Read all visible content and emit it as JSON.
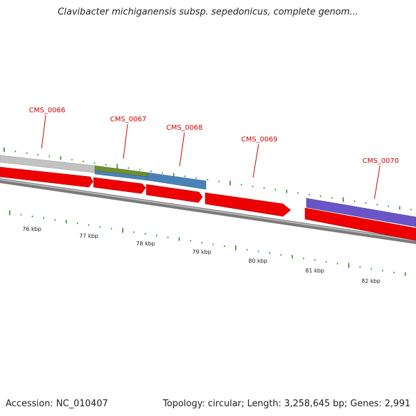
{
  "title": "Clavibacter michiganensis subsp. sepedonicus, complete genom...",
  "footer": {
    "accession": "Accession: NC_010407",
    "topology": "Topology: circular; Length: 3,258,645 bp; Genes: 2,991"
  },
  "colors": {
    "cds_forward": "#ee0000",
    "gene_grey": "#c2c2c2",
    "gene_green": "#6f8f2a",
    "gene_blue": "#4a82b8",
    "gene_purple": "#6a55c8",
    "backbone": "#7a7a7a",
    "tick": "#2e8b2e",
    "label_red": "#cc0000"
  },
  "genes": [
    {
      "name": "CMS_0066",
      "start_kbp": 75.6,
      "end_kbp": 76.7
    },
    {
      "name": "CMS_0067",
      "start_kbp": 76.7,
      "end_kbp": 77.7
    },
    {
      "name": "CMS_0068",
      "start_kbp": 77.7,
      "end_kbp": 78.7
    },
    {
      "name": "CMS_0069",
      "start_kbp": 78.7,
      "end_kbp": 80.3
    },
    {
      "name": "CMS_0070",
      "start_kbp": 80.7,
      "end_kbp": 82.5
    }
  ],
  "kbp_labels": [
    "76 kbp",
    "77 kbp",
    "78 kbp",
    "79 kbp",
    "80 kbp",
    "81 kbp",
    "82 kbp"
  ]
}
